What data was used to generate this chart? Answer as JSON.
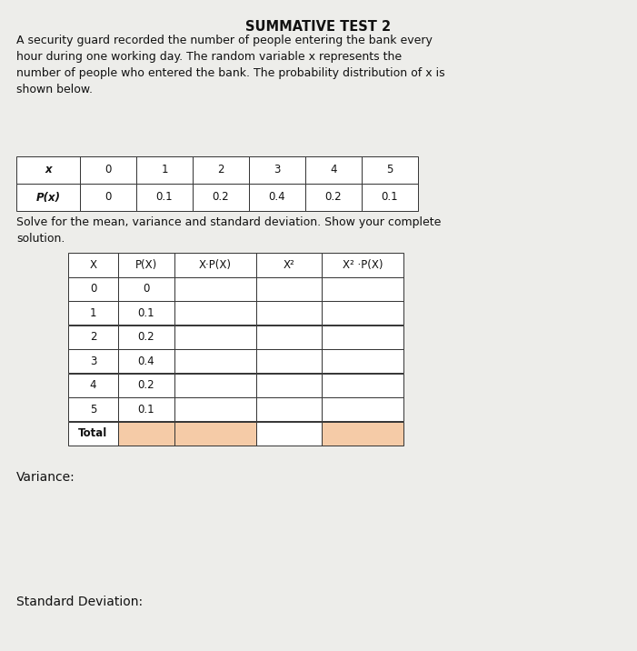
{
  "title": "SUMMATIVE TEST 2",
  "paragraph": "A security guard recorded the number of people entering the bank every\nhour during one working day. The random variable x represents the\nnumber of people who entered the bank. The probability distribution of x is\nshown below.",
  "top_table_headers": [
    "x",
    "0",
    "1",
    "2",
    "3",
    "4",
    "5"
  ],
  "top_table_row": [
    "P(x)",
    "0",
    "0.1",
    "0.2",
    "0.4",
    "0.2",
    "0.1"
  ],
  "middle_text": "Solve for the mean, variance and standard deviation. Show your complete\nsolution.",
  "main_headers": [
    "X",
    "P(X)",
    "X·P(X)",
    "X²",
    "X² ·P(X)"
  ],
  "main_rows": [
    [
      "0",
      "0",
      "",
      "",
      ""
    ],
    [
      "1",
      "0.1",
      "",
      "",
      ""
    ],
    [
      "2",
      "0.2",
      "",
      "",
      ""
    ],
    [
      "3",
      "0.4",
      "",
      "",
      ""
    ],
    [
      "4",
      "0.2",
      "",
      "",
      ""
    ],
    [
      "5",
      "0.1",
      "",
      "",
      ""
    ],
    [
      "Total",
      "",
      "",
      "",
      ""
    ]
  ],
  "highlight_color": "#f5cba7",
  "highlight_total_cols": [
    1,
    2,
    4
  ],
  "variance_label": "Variance:",
  "std_label": "Standard Deviation:",
  "bg_color": "#ededea",
  "text_color": "#111111",
  "title_fontsize": 10.5,
  "body_fontsize": 9.0,
  "table_fontsize": 8.5
}
